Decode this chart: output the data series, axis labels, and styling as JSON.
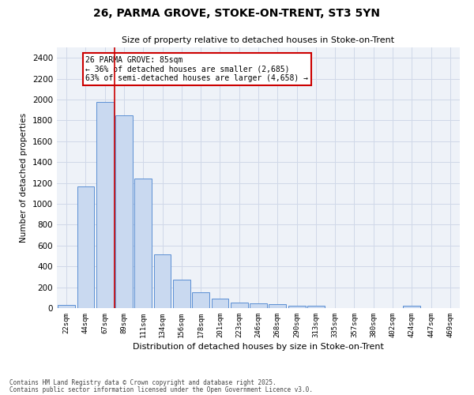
{
  "title_line1": "26, PARMA GROVE, STOKE-ON-TRENT, ST3 5YN",
  "title_line2": "Size of property relative to detached houses in Stoke-on-Trent",
  "xlabel": "Distribution of detached houses by size in Stoke-on-Trent",
  "ylabel": "Number of detached properties",
  "categories": [
    "22sqm",
    "44sqm",
    "67sqm",
    "89sqm",
    "111sqm",
    "134sqm",
    "156sqm",
    "178sqm",
    "201sqm",
    "223sqm",
    "246sqm",
    "268sqm",
    "290sqm",
    "313sqm",
    "335sqm",
    "357sqm",
    "380sqm",
    "402sqm",
    "424sqm",
    "447sqm",
    "469sqm"
  ],
  "values": [
    30,
    1170,
    1980,
    1850,
    1240,
    515,
    275,
    155,
    90,
    50,
    42,
    35,
    25,
    20,
    0,
    0,
    0,
    0,
    20,
    0,
    0
  ],
  "bar_color": "#c9d9f0",
  "bar_edge_color": "#5b8fd4",
  "red_line_x": 2.5,
  "annotation_text": "26 PARMA GROVE: 85sqm\n← 36% of detached houses are smaller (2,685)\n63% of semi-detached houses are larger (4,658) →",
  "annotation_box_color": "#ffffff",
  "annotation_box_edge": "#cc0000",
  "ylim": [
    0,
    2500
  ],
  "yticks": [
    0,
    200,
    400,
    600,
    800,
    1000,
    1200,
    1400,
    1600,
    1800,
    2000,
    2200,
    2400
  ],
  "grid_color": "#d0d8e8",
  "background_color": "#eef2f8",
  "footer_line1": "Contains HM Land Registry data © Crown copyright and database right 2025.",
  "footer_line2": "Contains public sector information licensed under the Open Government Licence v3.0."
}
